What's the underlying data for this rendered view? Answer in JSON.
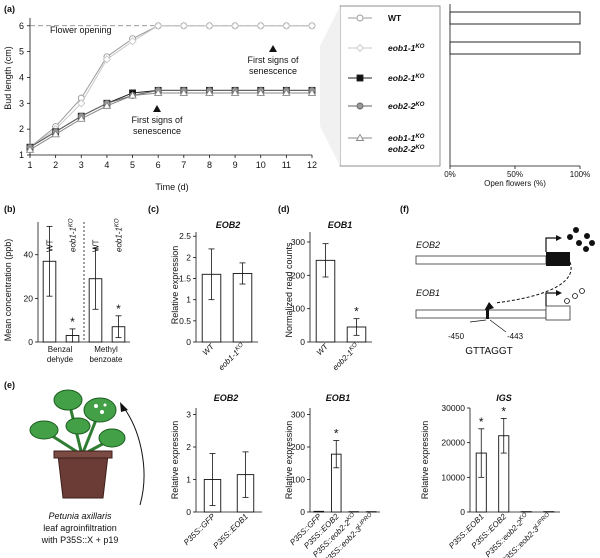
{
  "panels": {
    "a": {
      "label": "(a)",
      "y_label": "Bud length (cm)",
      "x_label": "Time (d)",
      "flower_opening": "Flower opening",
      "senescence_1": [
        "First signs of",
        "senescence"
      ],
      "senescence_2": [
        "First signs of",
        "senescence"
      ],
      "legend": [
        "WT",
        "eob1-1KO",
        "eob2-1KO",
        "eob2-2KO",
        "eob1-1KO / eob2-2KO"
      ],
      "bar_x_label": "Open flowers (%)",
      "bar_ticks": [
        "0%",
        "50%",
        "100%"
      ],
      "bar_values": [
        100,
        100,
        0,
        0,
        0
      ]
    },
    "b": {
      "label": "(b)",
      "y_label": "Mean concentration (ppb)",
      "groups": [
        "Benzal dehyde",
        "Methyl benzoate"
      ],
      "star": "*"
    },
    "c": {
      "label": "(c)",
      "title": "EOB2",
      "y_label": "Relative expression"
    },
    "d": {
      "label": "(d)",
      "title": "EOB1",
      "y_label": "Normalized read counts",
      "star": "*"
    },
    "e": {
      "label": "(e)",
      "caption": [
        "Petunia axillaris",
        "leaf agroinfiltration",
        "with P35S::X + p19"
      ]
    },
    "f": {
      "label": "(f)",
      "gene_top": "EOB2",
      "gene_bottom": "EOB1",
      "pos_left": "-450",
      "pos_right": "-443",
      "motif": "GTTAGGT"
    }
  },
  "chart_data": [
    {
      "type": "line",
      "title": "",
      "xlabel": "Time (d)",
      "ylabel": "Bud length (cm)",
      "x": [
        1,
        2,
        3,
        4,
        5,
        6,
        7,
        8,
        9,
        10,
        11,
        12
      ],
      "xlim": [
        1,
        12
      ],
      "ylim": [
        1,
        6.3
      ],
      "yticks": [
        1,
        2,
        3,
        4,
        5,
        6
      ],
      "series": [
        {
          "name": "WT",
          "values": [
            1.3,
            2.1,
            3.2,
            4.8,
            5.5,
            6.0,
            6.0,
            6.0,
            6.0,
            6.0,
            6.0,
            6.0
          ]
        },
        {
          "name": "eob1-1KO",
          "values": [
            1.3,
            2.0,
            3.0,
            4.7,
            5.4,
            6.0,
            6.0,
            6.0,
            6.0,
            6.0,
            6.0,
            6.0
          ]
        },
        {
          "name": "eob2-1KO",
          "values": [
            1.3,
            1.9,
            2.5,
            3.0,
            3.4,
            3.5,
            3.5,
            3.5,
            3.5,
            3.5,
            3.5,
            3.5
          ]
        },
        {
          "name": "eob2-2KO",
          "values": [
            1.3,
            1.9,
            2.5,
            3.0,
            3.3,
            3.5,
            3.5,
            3.5,
            3.5,
            3.5,
            3.5,
            3.5
          ]
        },
        {
          "name": "eob1-1KO eob2-2KO",
          "values": [
            1.2,
            1.8,
            2.4,
            2.9,
            3.3,
            3.4,
            3.4,
            3.4,
            3.4,
            3.4,
            3.4,
            3.4
          ]
        }
      ]
    },
    {
      "type": "bar",
      "title": "(b)",
      "ylabel": "Mean concentration (ppb)",
      "ylim": [
        0,
        55
      ],
      "yticks": [
        0,
        20,
        40
      ],
      "categories": [
        "WT",
        "eob1-1KO",
        "WT",
        "eob1-1KO"
      ],
      "values": [
        37,
        3,
        29,
        7
      ],
      "errors": [
        16,
        3,
        14,
        5
      ],
      "stars": [
        false,
        true,
        false,
        true
      ]
    },
    {
      "type": "bar",
      "title": "EOB2",
      "ylabel": "Relative expression",
      "ylim": [
        0,
        2.6
      ],
      "yticks": [
        0,
        0.5,
        1,
        1.5,
        2,
        2.5
      ],
      "categories": [
        "WT",
        "eob1-1KO"
      ],
      "values": [
        1.6,
        1.62
      ],
      "errors": [
        0.6,
        0.25
      ]
    },
    {
      "type": "bar",
      "title": "EOB1",
      "ylabel": "Normalized read counts",
      "ylim": [
        0,
        330
      ],
      "yticks": [
        0,
        100,
        200,
        300
      ],
      "categories": [
        "WT",
        "eob2-1KO"
      ],
      "values": [
        245,
        45
      ],
      "errors": [
        50,
        25
      ],
      "stars": [
        false,
        true
      ]
    },
    {
      "type": "bar",
      "title": "EOB2",
      "ylabel": "Relative expression",
      "ylim": [
        0,
        3.2
      ],
      "yticks": [
        0,
        1,
        2,
        3
      ],
      "categories": [
        "P35S::GFP",
        "P35S::EOB1"
      ],
      "values": [
        1.0,
        1.15
      ],
      "errors": [
        0.8,
        0.7
      ]
    },
    {
      "type": "bar",
      "title": "EOB1",
      "ylabel": "Relative expression",
      "ylim": [
        0,
        320
      ],
      "yticks": [
        0,
        100,
        200,
        300
      ],
      "categories": [
        "P35S::GFP",
        "P35S::EOB2",
        "P35S::eob2-2KO",
        "P35S::eob2-3LIPRO"
      ],
      "values": [
        2,
        178,
        1,
        1
      ],
      "errors": [
        0,
        42,
        0,
        0
      ],
      "stars": [
        false,
        true,
        false,
        false
      ]
    },
    {
      "type": "bar",
      "title": "IGS",
      "ylabel": "Relative expression",
      "ylim": [
        0,
        30000
      ],
      "yticks": [
        0,
        10000,
        20000,
        30000
      ],
      "categories": [
        "P35S::EOB1",
        "P35S::EOB2",
        "P35S::eob2-2KO",
        "P35S::eob2-3LIPRO"
      ],
      "values": [
        17000,
        22000,
        100,
        100
      ],
      "errors": [
        7000,
        5000,
        0,
        0
      ],
      "stars": [
        true,
        true,
        false,
        false
      ]
    }
  ]
}
